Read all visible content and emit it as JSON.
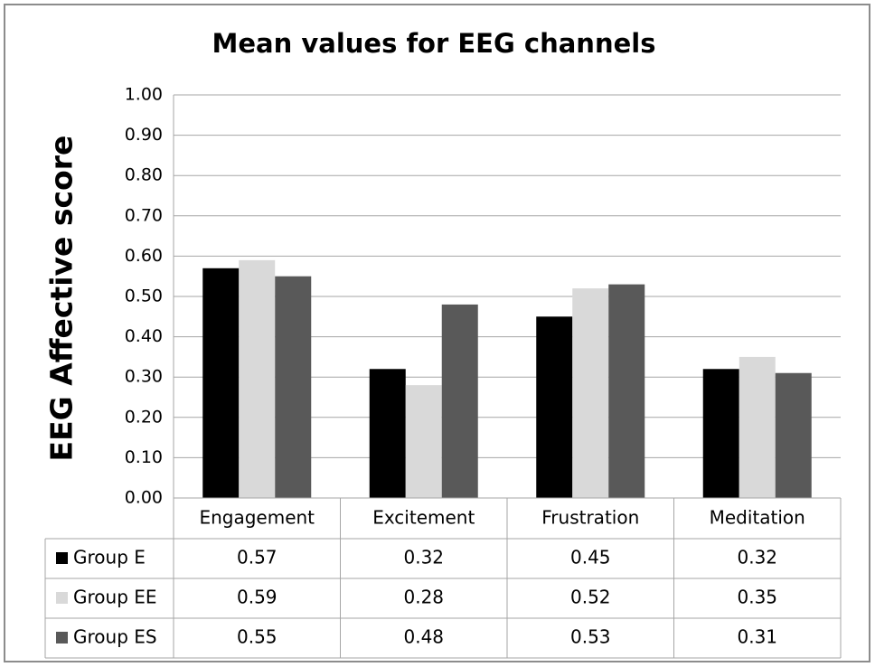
{
  "chart_data": {
    "type": "bar",
    "title": "Mean values for EEG channels",
    "y_label": "EEG Affective score",
    "categories": [
      "Engagement",
      "Excitement",
      "Frustration",
      "Meditation"
    ],
    "series": [
      {
        "name": "Group E",
        "color": "#000000",
        "values": [
          0.57,
          0.32,
          0.45,
          0.32
        ]
      },
      {
        "name": "Group EE",
        "color": "#d9d9d9",
        "values": [
          0.59,
          0.28,
          0.52,
          0.35
        ]
      },
      {
        "name": "Group ES",
        "color": "#595959",
        "values": [
          0.55,
          0.48,
          0.53,
          0.31
        ]
      }
    ],
    "ylim": [
      0,
      1
    ],
    "yticks": [
      {
        "value": 0,
        "label": "0.00"
      },
      {
        "value": 0.1,
        "label": "0.10"
      },
      {
        "value": 0.2,
        "label": "0.20"
      },
      {
        "value": 0.3,
        "label": "0.30"
      },
      {
        "value": 0.4,
        "label": "0.40"
      },
      {
        "value": 0.5,
        "label": "0.50"
      },
      {
        "value": 0.6,
        "label": "0.60"
      },
      {
        "value": 0.7,
        "label": "0.70"
      },
      {
        "value": 0.8,
        "label": "0.80"
      },
      {
        "value": 0.9,
        "label": "0.90"
      },
      {
        "value": 1,
        "label": "1.00"
      }
    ],
    "grid": true,
    "data_table": true
  }
}
